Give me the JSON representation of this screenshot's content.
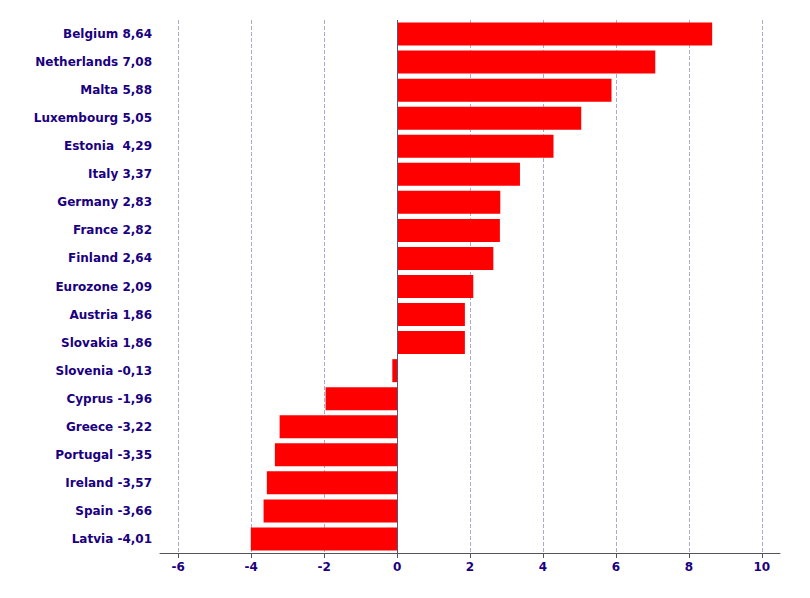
{
  "chart_data": {
    "type": "bar",
    "orientation": "horizontal",
    "categories": [
      "Belgium 8,64",
      "Netherlands 7,08",
      "Malta 5,88",
      "Luxembourg 5,05",
      "Estonia  4,29",
      "Italy 3,37",
      "Germany 2,83",
      "France 2,82",
      "Finland 2,64",
      "Eurozone 2,09",
      "Austria 1,86",
      "Slovakia 1,86",
      "Slovenia -0,13",
      "Cyprus -1,96",
      "Greece -3,22",
      "Portugal -3,35",
      "Ireland -3,57",
      "Spain -3,66",
      "Latvia -4,01"
    ],
    "values": [
      8.64,
      7.08,
      5.88,
      5.05,
      4.29,
      3.37,
      2.83,
      2.82,
      2.64,
      2.09,
      1.86,
      1.86,
      -0.13,
      -1.96,
      -3.22,
      -3.35,
      -3.57,
      -3.66,
      -4.01
    ],
    "color": "#ff0000",
    "xlim": [
      -6.5,
      10.5
    ],
    "xticks": [
      -6,
      -4,
      -2,
      0,
      2,
      4,
      6,
      8,
      10
    ],
    "grid": true
  }
}
